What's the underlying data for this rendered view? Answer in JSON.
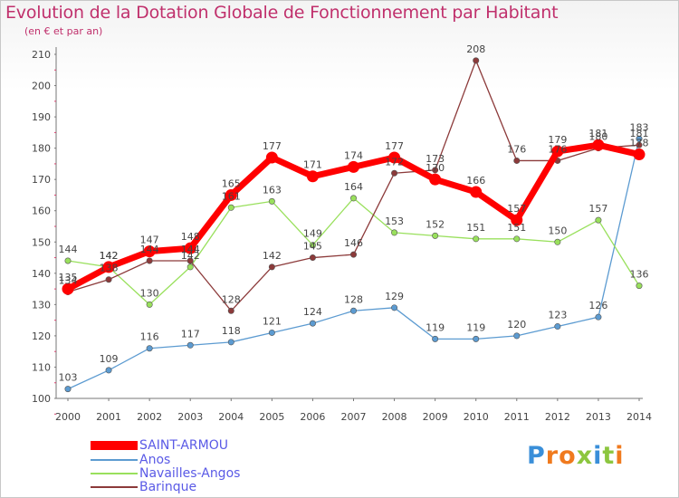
{
  "chart_data": {
    "type": "line",
    "title": "Evolution de la Dotation Globale de Fonctionnement par Habitant",
    "subtitle": "(en € et par an)",
    "x": [
      "2000",
      "2001",
      "2002",
      "2003",
      "2004",
      "2005",
      "2006",
      "2007",
      "2008",
      "2009",
      "2010",
      "2011",
      "2012",
      "2013",
      "2014"
    ],
    "ylim": [
      100,
      210
    ],
    "yticks": [
      100,
      110,
      120,
      130,
      140,
      150,
      160,
      170,
      180,
      190,
      200,
      210
    ],
    "grid": false,
    "legend_position": "bottom-left",
    "series": [
      {
        "name": "SAINT-ARMOU",
        "color": "#ff0000",
        "values": [
          135,
          142,
          147,
          148,
          165,
          177,
          171,
          174,
          177,
          170,
          166,
          157,
          179,
          181,
          178
        ]
      },
      {
        "name": "Anos",
        "color": "#5c9bd1",
        "values": [
          103,
          109,
          116,
          117,
          118,
          121,
          124,
          128,
          129,
          119,
          119,
          120,
          123,
          126,
          183
        ]
      },
      {
        "name": "Navailles-Angos",
        "color": "#99e05c",
        "values": [
          144,
          142,
          130,
          142,
          161,
          163,
          149,
          164,
          153,
          152,
          151,
          151,
          150,
          157,
          136
        ]
      },
      {
        "name": "Barinque",
        "color": "#8c3a3a",
        "values": [
          134,
          138,
          144,
          144,
          128,
          142,
          145,
          146,
          172,
          173,
          208,
          176,
          176,
          180,
          181
        ]
      }
    ]
  },
  "logo": {
    "letters": [
      "P",
      "r",
      "o",
      "x",
      "i",
      "t",
      "i"
    ],
    "colors": [
      "#3a8fd9",
      "#f07a1e",
      "#f07a1e",
      "#8cc63f",
      "#3a8fd9",
      "#8cc63f",
      "#f07a1e"
    ]
  }
}
